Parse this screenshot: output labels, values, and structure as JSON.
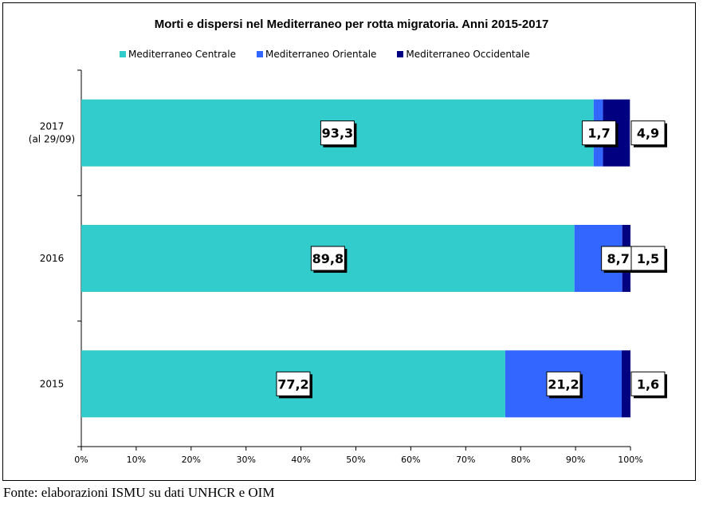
{
  "chart_data": {
    "type": "bar",
    "orientation": "horizontal",
    "stacked": true,
    "title": "Morti e dispersi nel Mediterraneo per rotta migratoria. Anni 2015-2017",
    "categories": [
      "2017\n(al 29/09)",
      "2016",
      "2015"
    ],
    "series": [
      {
        "name": "Mediterraneo Centrale",
        "color": "#33CCCC",
        "values": [
          93.3,
          89.8,
          77.2
        ],
        "labels": [
          "93,3",
          "89,8",
          "77,2"
        ]
      },
      {
        "name": "Mediterraneo Orientale",
        "color": "#3366FF",
        "values": [
          1.7,
          8.7,
          21.2
        ],
        "labels": [
          "1,7",
          "8,7",
          "21,2"
        ]
      },
      {
        "name": "Mediterraneo Occidentale",
        "color": "#000080",
        "values": [
          4.9,
          1.5,
          1.6
        ],
        "labels": [
          "4,9",
          "1,5",
          "1,6"
        ]
      }
    ],
    "xlim": [
      0,
      100
    ],
    "xticks": [
      "0%",
      "10%",
      "20%",
      "30%",
      "40%",
      "50%",
      "60%",
      "70%",
      "80%",
      "90%",
      "100%"
    ],
    "grid": false,
    "legend_position": "top"
  },
  "footer": "Fonte: elaborazioni ISMU su dati UNHCR e OIM"
}
